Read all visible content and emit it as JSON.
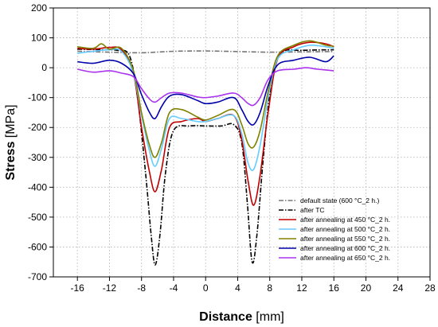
{
  "chart_data": {
    "type": "line",
    "xlabel": {
      "bold": "Distance",
      "unit": " [mm]"
    },
    "ylabel": {
      "bold": "Stress",
      "unit": " [MPa]"
    },
    "xlim": [
      -19,
      28
    ],
    "ylim": [
      -700,
      200
    ],
    "x_ticks": [
      -16,
      -12,
      -8,
      -4,
      0,
      4,
      8,
      12,
      16,
      20,
      24,
      28
    ],
    "y_ticks": [
      200,
      100,
      0,
      -100,
      -200,
      -300,
      -400,
      -500,
      -600,
      -700
    ],
    "grid": true,
    "legend_position": "bottom-right",
    "series": [
      {
        "name": "default state (600 °C_2 h.)",
        "color": "#777777",
        "dash": "dashdot",
        "points": [
          [
            -16,
            55
          ],
          [
            -12,
            52
          ],
          [
            -8,
            50
          ],
          [
            -4,
            55
          ],
          [
            0,
            56
          ],
          [
            4,
            54
          ],
          [
            8,
            52
          ],
          [
            12,
            53
          ],
          [
            16,
            54
          ]
        ]
      },
      {
        "name": "after TC",
        "color": "#000000",
        "dash": "dashdot",
        "points": [
          [
            -16,
            62
          ],
          [
            -13,
            60
          ],
          [
            -11,
            58
          ],
          [
            -9.5,
            40
          ],
          [
            -8.5,
            -100
          ],
          [
            -7.5,
            -350
          ],
          [
            -6.8,
            -560
          ],
          [
            -6.3,
            -660
          ],
          [
            -5.7,
            -560
          ],
          [
            -5,
            -350
          ],
          [
            -4,
            -210
          ],
          [
            -2,
            -195
          ],
          [
            0,
            -195
          ],
          [
            2,
            -195
          ],
          [
            3.5,
            -190
          ],
          [
            4.5,
            -250
          ],
          [
            5.2,
            -450
          ],
          [
            5.8,
            -650
          ],
          [
            6.4,
            -560
          ],
          [
            7.2,
            -300
          ],
          [
            8.2,
            -50
          ],
          [
            9.5,
            50
          ],
          [
            12,
            58
          ],
          [
            16,
            60
          ]
        ]
      },
      {
        "name": "after annealing at 450 °C_2 h.",
        "color": "#c00000",
        "dash": "solid",
        "points": [
          [
            -16,
            65
          ],
          [
            -14,
            62
          ],
          [
            -12,
            68
          ],
          [
            -10.5,
            60
          ],
          [
            -9,
            -20
          ],
          [
            -8,
            -200
          ],
          [
            -7,
            -350
          ],
          [
            -6.3,
            -415
          ],
          [
            -5.5,
            -340
          ],
          [
            -4.5,
            -200
          ],
          [
            -3,
            -180
          ],
          [
            -1,
            -170
          ],
          [
            0,
            -180
          ],
          [
            1.5,
            -170
          ],
          [
            3.5,
            -160
          ],
          [
            4.5,
            -240
          ],
          [
            5.3,
            -380
          ],
          [
            6,
            -460
          ],
          [
            6.8,
            -360
          ],
          [
            7.8,
            -150
          ],
          [
            9,
            30
          ],
          [
            11,
            70
          ],
          [
            13,
            85
          ],
          [
            15,
            80
          ],
          [
            16,
            70
          ]
        ]
      },
      {
        "name": "after annealing at 500 °C_2 h.",
        "color": "#66ccff",
        "dash": "solid",
        "points": [
          [
            -16,
            48
          ],
          [
            -14,
            55
          ],
          [
            -12,
            60
          ],
          [
            -10.5,
            55
          ],
          [
            -9,
            -20
          ],
          [
            -8,
            -160
          ],
          [
            -7,
            -280
          ],
          [
            -6.3,
            -330
          ],
          [
            -5.5,
            -270
          ],
          [
            -4.5,
            -170
          ],
          [
            -3,
            -170
          ],
          [
            -1,
            -180
          ],
          [
            0,
            -180
          ],
          [
            1.5,
            -170
          ],
          [
            3.5,
            -160
          ],
          [
            4.5,
            -220
          ],
          [
            5.3,
            -320
          ],
          [
            6,
            -340
          ],
          [
            6.8,
            -260
          ],
          [
            7.8,
            -100
          ],
          [
            9,
            30
          ],
          [
            11,
            60
          ],
          [
            13,
            75
          ],
          [
            15,
            70
          ],
          [
            16,
            65
          ]
        ]
      },
      {
        "name": "after annealing at 550 °C_2 h.",
        "color": "#808000",
        "dash": "solid",
        "points": [
          [
            -16,
            70
          ],
          [
            -14,
            65
          ],
          [
            -13,
            80
          ],
          [
            -12,
            62
          ],
          [
            -10.5,
            65
          ],
          [
            -9,
            -10
          ],
          [
            -8,
            -150
          ],
          [
            -7,
            -260
          ],
          [
            -6.3,
            -300
          ],
          [
            -5.5,
            -250
          ],
          [
            -4.5,
            -150
          ],
          [
            -3,
            -140
          ],
          [
            -1,
            -165
          ],
          [
            0,
            -175
          ],
          [
            1.5,
            -160
          ],
          [
            3.5,
            -140
          ],
          [
            4.5,
            -190
          ],
          [
            5.3,
            -255
          ],
          [
            6,
            -265
          ],
          [
            6.8,
            -210
          ],
          [
            7.8,
            -80
          ],
          [
            9,
            40
          ],
          [
            11,
            75
          ],
          [
            13,
            90
          ],
          [
            15,
            75
          ],
          [
            16,
            72
          ]
        ]
      },
      {
        "name": "after annealing at 600 °C_2 h.",
        "color": "#0000aa",
        "dash": "solid",
        "points": [
          [
            -16,
            20
          ],
          [
            -14,
            15
          ],
          [
            -12,
            25
          ],
          [
            -10.5,
            15
          ],
          [
            -9,
            -20
          ],
          [
            -8,
            -90
          ],
          [
            -7,
            -150
          ],
          [
            -6.3,
            -170
          ],
          [
            -5.5,
            -130
          ],
          [
            -4.5,
            -95
          ],
          [
            -3,
            -90
          ],
          [
            -1,
            -110
          ],
          [
            0,
            -120
          ],
          [
            1.5,
            -115
          ],
          [
            3.5,
            -100
          ],
          [
            4.5,
            -140
          ],
          [
            5.3,
            -180
          ],
          [
            6,
            -190
          ],
          [
            6.8,
            -150
          ],
          [
            7.8,
            -60
          ],
          [
            9,
            10
          ],
          [
            11,
            25
          ],
          [
            13,
            35
          ],
          [
            15,
            20
          ],
          [
            16,
            40
          ]
        ]
      },
      {
        "name": "after annealing at 650 °C_2 h.",
        "color": "#aa33ee",
        "dash": "solid",
        "points": [
          [
            -16,
            -5
          ],
          [
            -14,
            -15
          ],
          [
            -12,
            -10
          ],
          [
            -10.5,
            -18
          ],
          [
            -9,
            -30
          ],
          [
            -8,
            -70
          ],
          [
            -7,
            -105
          ],
          [
            -6.3,
            -115
          ],
          [
            -5.5,
            -100
          ],
          [
            -4.5,
            -85
          ],
          [
            -3,
            -85
          ],
          [
            -1,
            -98
          ],
          [
            0,
            -100
          ],
          [
            1.5,
            -95
          ],
          [
            3.5,
            -85
          ],
          [
            4.5,
            -100
          ],
          [
            5.3,
            -120
          ],
          [
            6,
            -125
          ],
          [
            6.8,
            -100
          ],
          [
            7.8,
            -40
          ],
          [
            9,
            -10
          ],
          [
            11,
            -5
          ],
          [
            12.5,
            0
          ],
          [
            14,
            -5
          ],
          [
            16,
            -10
          ]
        ]
      }
    ]
  }
}
